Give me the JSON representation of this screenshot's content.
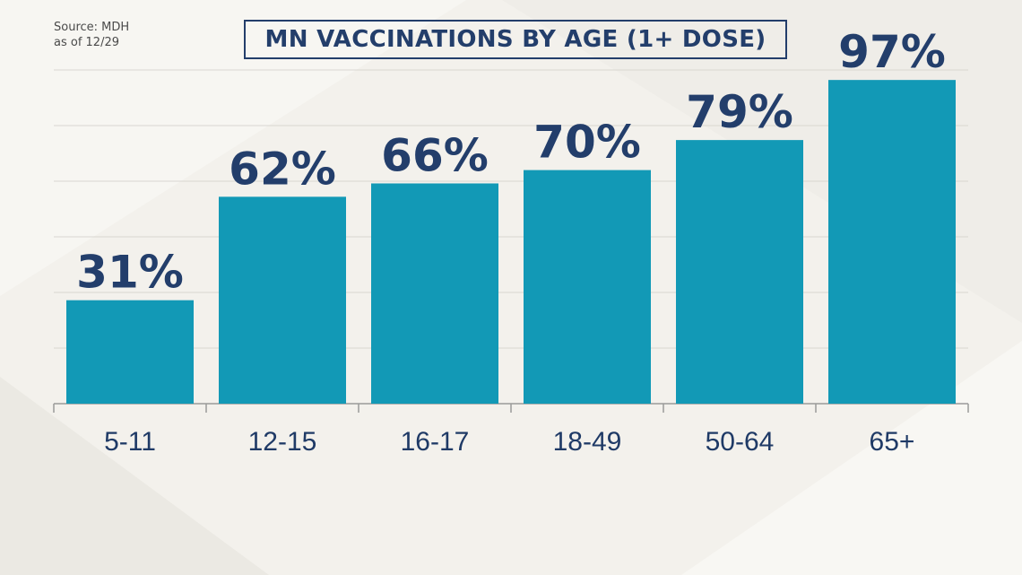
{
  "source": {
    "line1": "Source: MDH",
    "line2": "as of 12/29"
  },
  "chart_data": {
    "type": "bar",
    "title": "MN VACCINATIONS BY AGE (1+ DOSE)",
    "categories": [
      "5-11",
      "12-15",
      "16-17",
      "18-49",
      "50-64",
      "65+"
    ],
    "values": [
      31,
      62,
      66,
      70,
      79,
      97
    ],
    "value_labels": [
      "31%",
      "62%",
      "66%",
      "70%",
      "79%",
      "97%"
    ],
    "ylim": [
      0,
      100
    ],
    "grid": true,
    "colors": {
      "bar": "#1299b6",
      "text": "#233e6b",
      "grid": "#d8d6d1",
      "axis": "#9a9a9a"
    }
  }
}
